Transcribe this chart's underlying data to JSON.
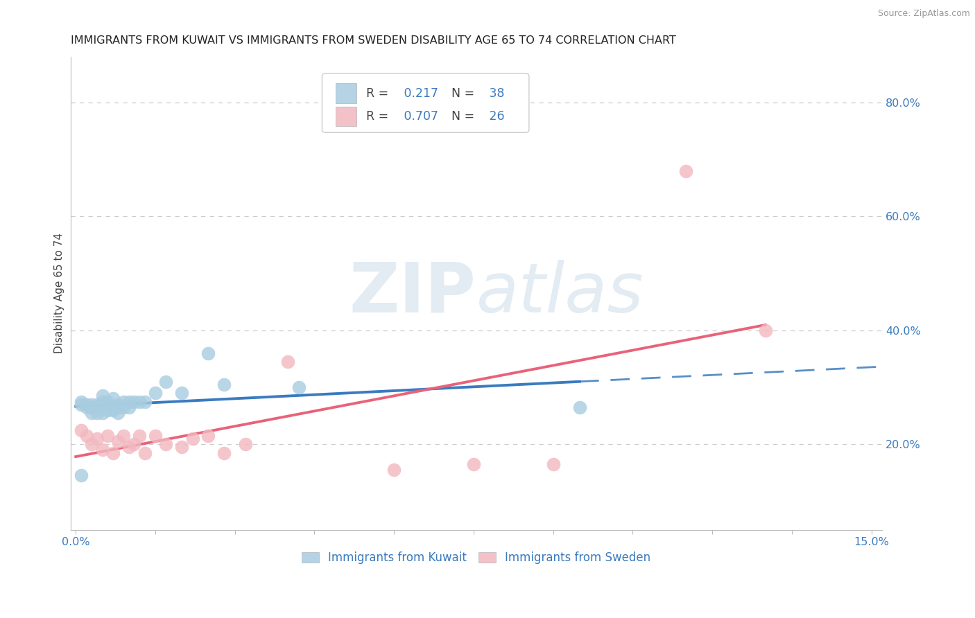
{
  "title": "IMMIGRANTS FROM KUWAIT VS IMMIGRANTS FROM SWEDEN DISABILITY AGE 65 TO 74 CORRELATION CHART",
  "source": "Source: ZipAtlas.com",
  "ylabel": "Disability Age 65 to 74",
  "xlim": [
    -0.001,
    0.152
  ],
  "ylim": [
    0.05,
    0.88
  ],
  "ytick_positions": [
    0.2,
    0.4,
    0.6,
    0.8
  ],
  "ytick_labels": [
    "20.0%",
    "40.0%",
    "60.0%",
    "80.0%"
  ],
  "kuwait_R": 0.217,
  "kuwait_N": 38,
  "sweden_R": 0.707,
  "sweden_N": 26,
  "kuwait_color": "#a8cce0",
  "sweden_color": "#f2b8c0",
  "kuwait_line_color": "#3a7bbf",
  "sweden_line_color": "#e8637a",
  "text_color": "#3a7bbf",
  "background_color": "#ffffff",
  "grid_color": "#cccccc",
  "kuwait_x": [
    0.001,
    0.001,
    0.002,
    0.002,
    0.003,
    0.003,
    0.003,
    0.004,
    0.004,
    0.004,
    0.005,
    0.005,
    0.005,
    0.005,
    0.006,
    0.006,
    0.006,
    0.007,
    0.007,
    0.007,
    0.008,
    0.008,
    0.008,
    0.009,
    0.009,
    0.01,
    0.01,
    0.011,
    0.012,
    0.013,
    0.015,
    0.017,
    0.02,
    0.025,
    0.028,
    0.042,
    0.095,
    0.001
  ],
  "kuwait_y": [
    0.27,
    0.275,
    0.265,
    0.27,
    0.255,
    0.265,
    0.27,
    0.255,
    0.265,
    0.27,
    0.255,
    0.27,
    0.275,
    0.285,
    0.26,
    0.27,
    0.275,
    0.26,
    0.265,
    0.28,
    0.255,
    0.265,
    0.27,
    0.265,
    0.275,
    0.265,
    0.275,
    0.275,
    0.275,
    0.275,
    0.29,
    0.31,
    0.29,
    0.36,
    0.305,
    0.3,
    0.265,
    0.145
  ],
  "sweden_x": [
    0.001,
    0.002,
    0.003,
    0.004,
    0.005,
    0.006,
    0.007,
    0.008,
    0.009,
    0.01,
    0.011,
    0.012,
    0.013,
    0.015,
    0.017,
    0.02,
    0.022,
    0.025,
    0.028,
    0.032,
    0.04,
    0.06,
    0.075,
    0.09,
    0.115,
    0.13
  ],
  "sweden_y": [
    0.225,
    0.215,
    0.2,
    0.21,
    0.19,
    0.215,
    0.185,
    0.205,
    0.215,
    0.195,
    0.2,
    0.215,
    0.185,
    0.215,
    0.2,
    0.195,
    0.21,
    0.215,
    0.185,
    0.2,
    0.345,
    0.155,
    0.165,
    0.165,
    0.68,
    0.4
  ],
  "title_fontsize": 11.5,
  "axis_label_fontsize": 11,
  "tick_fontsize": 11.5
}
